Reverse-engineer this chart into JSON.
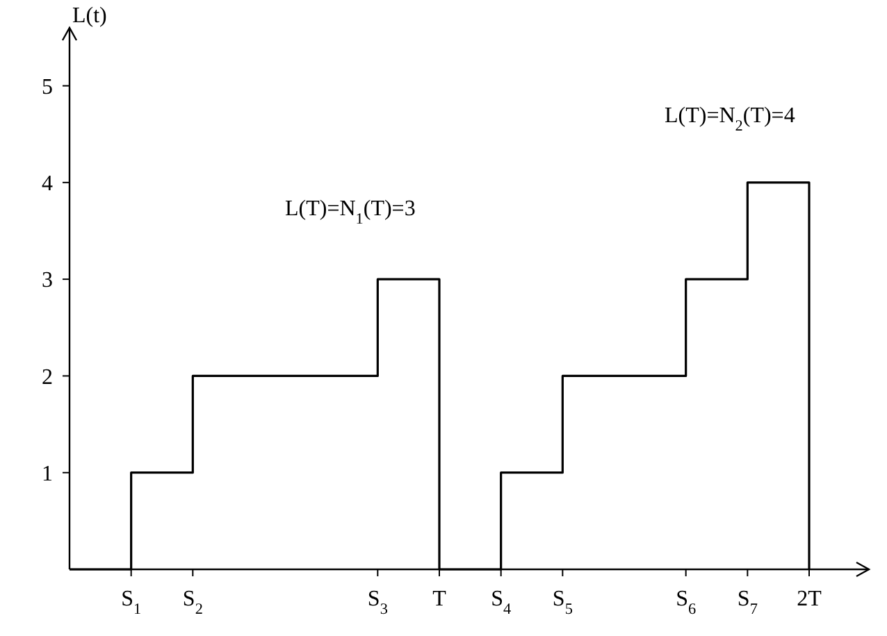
{
  "chart_data": {
    "type": "step",
    "ylabel": "L(t)",
    "categories": [
      null,
      "S$_{1}$",
      "S$_{2}$",
      null,
      null,
      "S$_{3}$",
      "T",
      "S$_{4}$",
      "S$_{5}$",
      null,
      "S$_{6}$",
      "S$_{7}$",
      "2T"
    ],
    "series": [
      {
        "color": "#000000",
        "values": [
          0,
          1,
          2,
          2,
          2,
          3,
          0,
          1,
          2,
          2,
          3,
          4,
          0
        ]
      }
    ],
    "ylim": [
      0,
      5.6
    ],
    "yticks": [
      1,
      2,
      3,
      4,
      5
    ],
    "annotations": [
      "L(T)=N$_{1}$(T)=3",
      "L(T)=N$_{2}$(T)=4"
    ],
    "grid": false
  }
}
